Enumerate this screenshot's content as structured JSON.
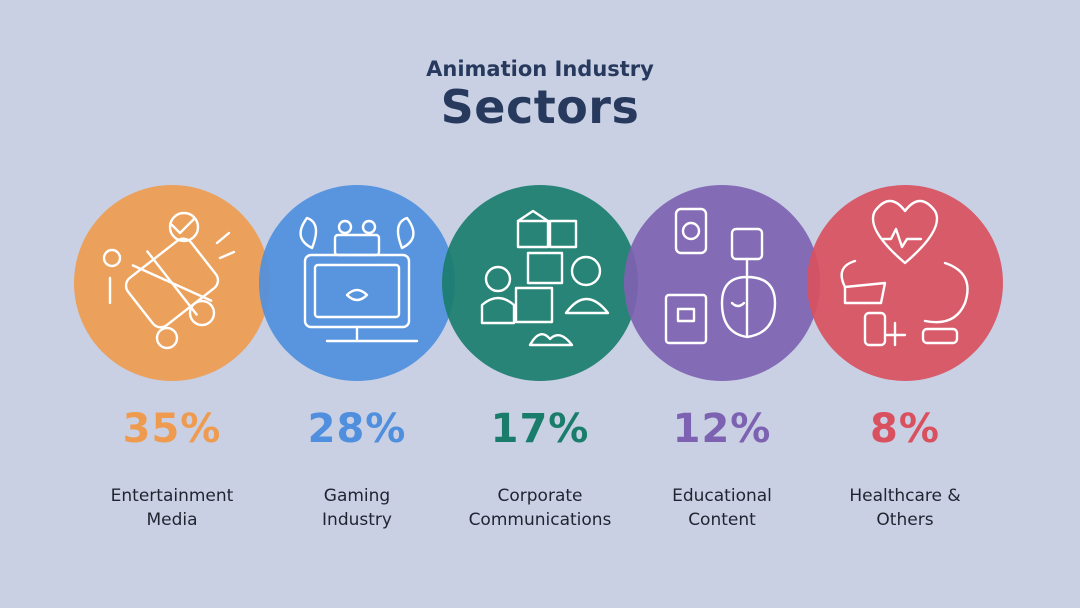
{
  "header": {
    "subtitle": "Animation Industry",
    "title": "Sectors"
  },
  "chart_data": {
    "type": "bar",
    "title": "Animation Industry Sectors",
    "categories": [
      "Entertainment Media",
      "Gaming Industry",
      "Corporate Communications",
      "Educational Content",
      "Healthcare & Others"
    ],
    "values": [
      35,
      28,
      17,
      12,
      8
    ],
    "unit": "%"
  },
  "sectors": [
    {
      "pct": "35%",
      "line1": "Entertainment",
      "line2": "Media",
      "color": "#ee9b4f",
      "icon": "film-animation-icon"
    },
    {
      "pct": "28%",
      "line1": "Gaming",
      "line2": "Industry",
      "color": "#4f8fde",
      "icon": "gaming-monitor-icon"
    },
    {
      "pct": "17%",
      "line1": "Corporate",
      "line2": "Communications",
      "color": "#1a7d6c",
      "icon": "business-team-icon"
    },
    {
      "pct": "12%",
      "line1": "Educational",
      "line2": "Content",
      "color": "#7e62b2",
      "icon": "education-icon"
    },
    {
      "pct": "8%",
      "line1": "Healthcare &",
      "line2": "Others",
      "color": "#d9505f",
      "icon": "healthcare-heart-icon"
    }
  ]
}
